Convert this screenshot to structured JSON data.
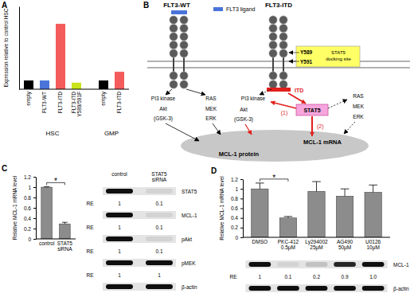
{
  "panel_labels": [
    "A",
    "B",
    "C",
    "D"
  ],
  "chart_data": [
    {
      "type": "bar",
      "ylabel": "Expression relative to control HSC",
      "categories": [
        "empty",
        "FLT3-WT",
        "FLT3-ITD",
        "FLT3-ITD Y589/591F",
        "empty",
        "FLT3-ITD"
      ],
      "category_groups": [
        "HSC",
        "HSC",
        "HSC",
        "HSC",
        "GMP",
        "GMP"
      ],
      "values": [
        1,
        1,
        7.5,
        0.75,
        1,
        2
      ],
      "colors": [
        "#000000",
        "#4a74d9",
        "#f45b5b",
        "#c9e31c",
        "#000000",
        "#f45b5b"
      ],
      "ylim": [
        0,
        9.5
      ],
      "tick_labels": "x"
    },
    {
      "type": "bar",
      "ylabel": "Relative MCL-1 mRNA level",
      "categories": [
        "control",
        "STAT5 siRNA"
      ],
      "values": [
        1,
        0.29
      ],
      "errors": [
        0.01,
        0.03
      ],
      "color": "#8c8c8c",
      "ylim": [
        0,
        1.2
      ],
      "yticks": [
        0,
        0.2,
        0.4,
        0.6,
        0.8,
        1,
        1.2
      ],
      "annotations": [
        {
          "text": "*",
          "from": "control",
          "to": "STAT5 siRNA"
        }
      ]
    },
    {
      "type": "bar",
      "ylabel": "Relative MCL-1 mRNA level",
      "categories": [
        "DMSO",
        "PKC-412 0.5μM",
        "Ly294002 25μM",
        "AG490 50μM",
        "U0126 10μM"
      ],
      "values": [
        1,
        0.4,
        0.95,
        0.85,
        0.93
      ],
      "errors": [
        0.12,
        0.03,
        0.2,
        0.15,
        0.15
      ],
      "color": "#8c8c8c",
      "ylim": [
        0,
        1.2
      ],
      "yticks": [
        0,
        0.2,
        0.4,
        0.6,
        0.8,
        1,
        1.2
      ],
      "annotations": [
        {
          "text": "*",
          "from": "DMSO",
          "to": "PKC-412 0.5μM"
        }
      ]
    }
  ],
  "diagram": {
    "wt": {
      "title": "FLT3-WT",
      "ligand": "FLT3 ligand",
      "pi3k": "PI3 kinase",
      "akt": "Akt",
      "gsk": "(GSK-3)",
      "ras": "RAS",
      "mek": "MEK",
      "erk": "ERK"
    },
    "itd": {
      "title": "FLT3-ITD",
      "docking": [
        "Y589",
        "Y591"
      ],
      "docking_label": "STAT5 docking site",
      "itd": "ITD",
      "stat5": "STAT5",
      "pi3k": "PI3 kinase",
      "akt": "Akt",
      "gsk": "(GSK-3)",
      "ras": "RAS",
      "mek": "MEK",
      "erk": "ERK",
      "path1": "(1)",
      "path2": "(2)"
    },
    "mcl1": {
      "mrna": "MCL-1 mRNA",
      "protein": "MCL-1 protein"
    }
  },
  "blots": [
    {
      "columns": [
        "control",
        "STAT5 siRNA"
      ],
      "re_label": "RE",
      "rows": [
        {
          "protein": "STAT5",
          "re": [
            "1",
            "0.1"
          ]
        },
        {
          "protein": "MCL-1",
          "re": [
            "1",
            "0.1"
          ]
        },
        {
          "protein": "pAkt",
          "re": [
            "1",
            "0.1"
          ]
        },
        {
          "protein": "pMEK",
          "re": [
            "1",
            "1"
          ]
        },
        {
          "protein": "β-actin"
        }
      ]
    },
    {
      "re_label": "RE",
      "rows": [
        {
          "protein": "MCL-1",
          "re": [
            "1",
            "0.1",
            "0.2",
            "0.9",
            "1.0"
          ]
        },
        {
          "protein": "β-actin"
        }
      ]
    }
  ]
}
